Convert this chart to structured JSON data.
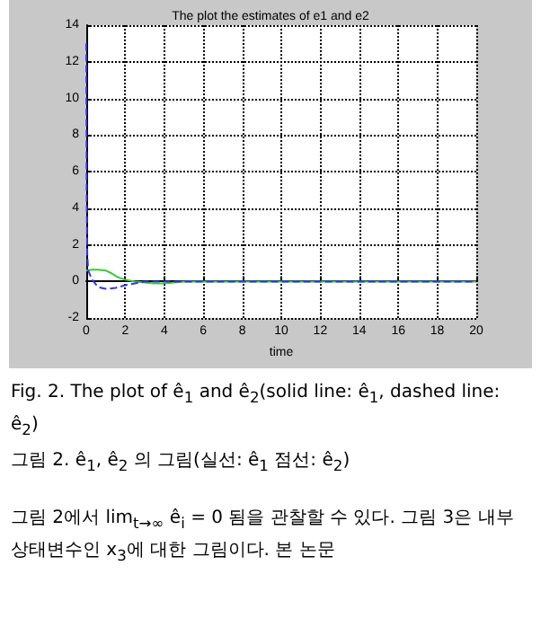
{
  "chart_data": {
    "type": "line",
    "title": "The plot the estimates of e1 and e2",
    "xlabel": "time",
    "xlim": [
      0,
      20
    ],
    "xticks": [
      0,
      2,
      4,
      6,
      8,
      10,
      12,
      14,
      16,
      18,
      20
    ],
    "ylim": [
      -2,
      14
    ],
    "yticks": [
      -2,
      0,
      2,
      4,
      6,
      8,
      10,
      12,
      14
    ],
    "grid": true,
    "series": [
      {
        "color": "#33cc33",
        "line_style": "solid",
        "x": [
          0,
          0.3,
          0.6,
          1,
          1.3,
          1.6,
          2,
          2.5,
          3,
          3.5,
          4,
          4.5,
          5,
          6,
          8,
          10,
          12,
          14,
          16,
          18,
          20
        ],
        "values": [
          0.6,
          0.65,
          0.65,
          0.6,
          0.45,
          0.25,
          0.1,
          0,
          -0.05,
          -0.1,
          -0.1,
          -0.05,
          0,
          0,
          0,
          0,
          0,
          0,
          0,
          0,
          0
        ]
      },
      {
        "color": "#3333ff",
        "line_style": "dashed",
        "x": [
          0,
          0.02,
          0.05,
          0.1,
          0.3,
          0.6,
          1,
          1.5,
          2,
          2.5,
          3,
          4,
          5,
          6,
          8,
          10,
          12,
          14,
          16,
          18,
          20
        ],
        "values": [
          13,
          5,
          1.5,
          0.6,
          0.1,
          -0.3,
          -0.4,
          -0.35,
          -0.2,
          -0.1,
          0,
          0,
          0,
          0,
          0,
          0,
          0,
          0,
          0,
          0,
          0
        ]
      }
    ],
    "annotations": [
      "Fig. 2. The plot of ê$_{1}$ and ê$_{2}$(solid line: ê$_{1}$, dashed line: ê$_{2}$)",
      "그림 2. ê$_{1}$, ê$_{2}$ 의 그림(실선: ê$_{1}$ 점선: ê$_{2}$)",
      "그림 2에서 lim$_{t→∞}$ ê$_{i}$ = 0 됨을 관찰할 수 있다. 그림 3은 내부 상태변수인 x$_{3}$에 대한 그림이다. 본 논문"
    ]
  }
}
